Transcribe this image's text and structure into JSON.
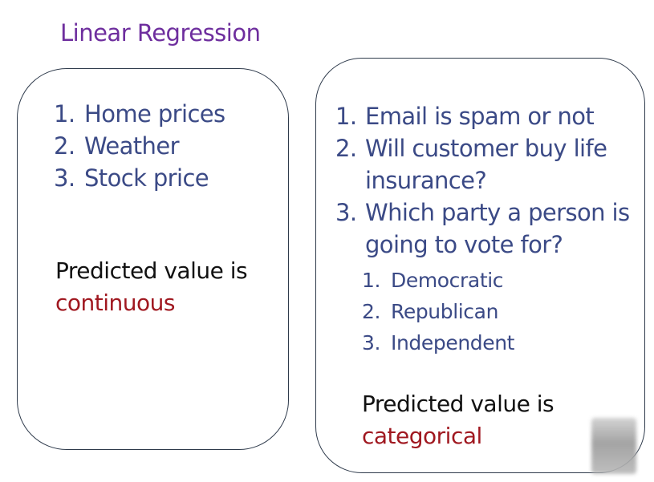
{
  "title": "Linear Regression",
  "left_panel": {
    "items": [
      {
        "num": "1.",
        "text": "Home prices"
      },
      {
        "num": "2.",
        "text": "Weather"
      },
      {
        "num": "3.",
        "text": "Stock price"
      }
    ],
    "predicted_prefix": "Predicted value is",
    "predicted_type": "continuous"
  },
  "right_panel": {
    "items": [
      {
        "num": "1.",
        "lines": [
          "Email is spam or not"
        ]
      },
      {
        "num": "2.",
        "lines": [
          "Will customer buy life",
          "insurance?"
        ]
      },
      {
        "num": "3.",
        "lines": [
          "Which party a person is",
          "going to vote for?"
        ]
      }
    ],
    "sub_items": [
      {
        "num": "1.",
        "text": "Democratic"
      },
      {
        "num": "2.",
        "text": "Republican"
      },
      {
        "num": "3.",
        "text": "Independent"
      }
    ],
    "predicted_prefix": "Predicted value is",
    "predicted_type": "categorical"
  },
  "colors": {
    "title": "#6e2e9e",
    "list_text": "#3b4a86",
    "accent": "#a01820"
  }
}
